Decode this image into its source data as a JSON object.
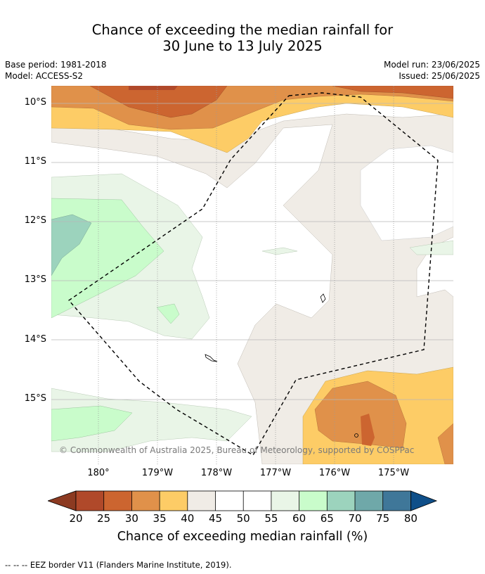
{
  "title_line1": "Chance of exceeding the median rainfall for",
  "title_line2": "30 June to 13 July 2025",
  "meta_left": {
    "base_period": "Base period: 1981-2018",
    "model": "Model: ACCESS-S2"
  },
  "meta_right": {
    "model_run": "Model run: 23/06/2025",
    "issued": "Issued: 25/06/2025"
  },
  "lat_labels": [
    "10°S",
    "11°S",
    "12°S",
    "13°S",
    "14°S",
    "15°S"
  ],
  "lon_labels": [
    "180°",
    "179°W",
    "178°W",
    "177°W",
    "176°W",
    "175°W"
  ],
  "copyright": "© Commonwealth of Australia 2025, Bureau of Meteorology, supported by COSPPac",
  "colorbar": {
    "ticks": [
      "20",
      "25",
      "30",
      "35",
      "40",
      "45",
      "50",
      "55",
      "60",
      "65",
      "70",
      "75",
      "80"
    ],
    "label": "Chance of exceeding median rainfall (%)",
    "colors": {
      "below_20": "#8c3a21",
      "20_25": "#b0492a",
      "25_30": "#cc6530",
      "30_35": "#e0914a",
      "35_40": "#fdcc66",
      "40_45": "#f0ece6",
      "45_50": "#ffffff",
      "50_55": "#ffffff",
      "55_60": "#e9f5e7",
      "60_65": "#c9fccb",
      "65_70": "#9cd3bd",
      "70_75": "#6fa8a9",
      "75_80": "#3f7799",
      "above_80": "#0f4f89"
    }
  },
  "footer": "--  --  -- EEZ border V11 (Flanders Marine Institute, 2019)."
}
